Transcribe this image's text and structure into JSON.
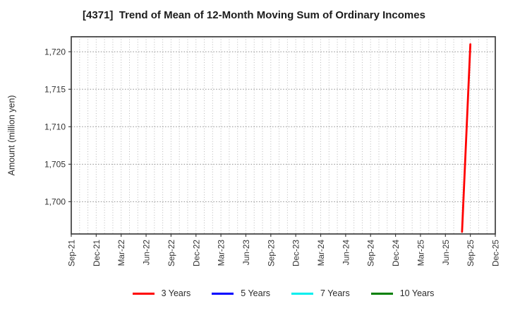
{
  "chart_data": {
    "type": "line",
    "title": "[4371]  Trend of Mean of 12-Month Moving Sum of Ordinary Incomes",
    "xlabel": "",
    "ylabel": "Amount (million yen)",
    "x_tick_labels": [
      "Sep-21",
      "Dec-21",
      "Mar-22",
      "Jun-22",
      "Sep-22",
      "Dec-22",
      "Mar-23",
      "Jun-23",
      "Sep-23",
      "Dec-23",
      "Mar-24",
      "Jun-24",
      "Sep-24",
      "Dec-24",
      "Mar-25",
      "Jun-25",
      "Sep-25",
      "Dec-25"
    ],
    "y_ticks": [
      1700,
      1705,
      1710,
      1715,
      1720
    ],
    "y_tick_labels": [
      "1,700",
      "1,705",
      "1,710",
      "1,715",
      "1,720"
    ],
    "ylim": [
      1695.7,
      1722.0
    ],
    "grid": {
      "horizontal": "dotted-at-major-ticks",
      "vertical": "dotted-monthly"
    },
    "legend_position": "bottom-center",
    "series": [
      {
        "name": "3 Years",
        "color": "#ff0000",
        "x": [
          "Aug-25",
          "Sep-25"
        ],
        "values": [
          1696,
          1721
        ]
      },
      {
        "name": "5 Years",
        "color": "#0000ff",
        "x": [],
        "values": []
      },
      {
        "name": "7 Years",
        "color": "#00eeee",
        "x": [],
        "values": []
      },
      {
        "name": "10 Years",
        "color": "#008000",
        "x": [],
        "values": []
      }
    ]
  },
  "colors": {
    "frame": "#3d3d3d",
    "grid_vertical": "#b8b8b8",
    "grid_horizontal": "#8f8f8f",
    "tick_label": "#333333",
    "title_text": "#1c1c1c"
  }
}
